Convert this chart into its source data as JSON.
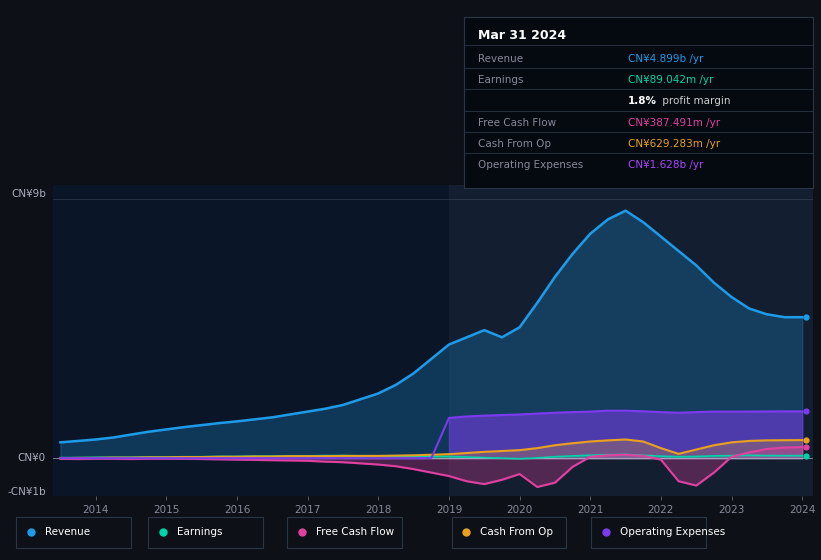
{
  "bg_color": "#0d1117",
  "plot_bg_color": "#0a1628",
  "highlight_bg": "#111d2e",
  "title": "Mar 31 2024",
  "revenue_color": "#1e9be8",
  "earnings_color": "#00d4aa",
  "free_cash_flow_color": "#e040a0",
  "cash_from_op_color": "#e8a020",
  "operating_expenses_color": "#7c3aed",
  "x_years": [
    2013.5,
    2013.75,
    2014.0,
    2014.25,
    2014.5,
    2014.75,
    2015.0,
    2015.25,
    2015.5,
    2015.75,
    2016.0,
    2016.25,
    2016.5,
    2016.75,
    2017.0,
    2017.25,
    2017.5,
    2017.75,
    2018.0,
    2018.25,
    2018.5,
    2018.75,
    2019.0,
    2019.25,
    2019.5,
    2019.75,
    2020.0,
    2020.25,
    2020.5,
    2020.75,
    2021.0,
    2021.25,
    2021.5,
    2021.75,
    2022.0,
    2022.25,
    2022.5,
    2022.75,
    2023.0,
    2023.25,
    2023.5,
    2023.75,
    2024.0
  ],
  "revenue": [
    0.55,
    0.6,
    0.65,
    0.72,
    0.82,
    0.92,
    1.0,
    1.08,
    1.15,
    1.22,
    1.28,
    1.35,
    1.42,
    1.52,
    1.62,
    1.72,
    1.85,
    2.05,
    2.25,
    2.55,
    2.95,
    3.45,
    3.95,
    4.2,
    4.45,
    4.2,
    4.55,
    5.4,
    6.3,
    7.1,
    7.8,
    8.3,
    8.6,
    8.2,
    7.7,
    7.2,
    6.7,
    6.1,
    5.6,
    5.2,
    5.0,
    4.9,
    4.899
  ],
  "earnings": [
    0.02,
    0.02,
    0.03,
    0.03,
    0.03,
    0.04,
    0.04,
    0.05,
    0.05,
    0.06,
    0.06,
    0.07,
    0.07,
    0.08,
    0.08,
    0.09,
    0.09,
    0.08,
    0.08,
    0.07,
    0.07,
    0.06,
    0.06,
    0.04,
    0.02,
    0.0,
    -0.02,
    0.01,
    0.05,
    0.08,
    0.1,
    0.12,
    0.13,
    0.1,
    0.07,
    0.05,
    0.06,
    0.08,
    0.09,
    0.1,
    0.09,
    0.089,
    0.089
  ],
  "free_cash_flow": [
    -0.02,
    -0.03,
    -0.02,
    -0.02,
    -0.03,
    -0.02,
    -0.02,
    -0.02,
    -0.03,
    -0.04,
    -0.05,
    -0.06,
    -0.07,
    -0.08,
    -0.09,
    -0.12,
    -0.14,
    -0.18,
    -0.22,
    -0.28,
    -0.38,
    -0.5,
    -0.62,
    -0.8,
    -0.9,
    -0.75,
    -0.55,
    -1.0,
    -0.85,
    -0.3,
    0.05,
    0.1,
    0.12,
    0.08,
    -0.05,
    -0.8,
    -0.95,
    -0.5,
    0.05,
    0.2,
    0.32,
    0.37,
    0.387
  ],
  "cash_from_op": [
    0.0,
    0.01,
    0.01,
    0.02,
    0.02,
    0.03,
    0.03,
    0.04,
    0.04,
    0.05,
    0.05,
    0.06,
    0.06,
    0.07,
    0.07,
    0.07,
    0.08,
    0.08,
    0.08,
    0.09,
    0.1,
    0.12,
    0.14,
    0.18,
    0.22,
    0.25,
    0.28,
    0.35,
    0.45,
    0.52,
    0.58,
    0.62,
    0.65,
    0.58,
    0.35,
    0.15,
    0.3,
    0.45,
    0.55,
    0.6,
    0.62,
    0.625,
    0.629
  ],
  "operating_expenses": [
    0.0,
    0.0,
    0.0,
    0.0,
    0.0,
    0.0,
    0.0,
    0.0,
    0.0,
    0.0,
    0.0,
    0.0,
    0.0,
    0.0,
    0.0,
    0.0,
    0.0,
    0.0,
    0.0,
    0.0,
    0.0,
    0.0,
    1.4,
    1.45,
    1.48,
    1.5,
    1.52,
    1.55,
    1.58,
    1.6,
    1.62,
    1.65,
    1.65,
    1.63,
    1.6,
    1.58,
    1.6,
    1.62,
    1.62,
    1.62,
    1.625,
    1.627,
    1.628
  ],
  "x_tick_labels": [
    "2014",
    "2015",
    "2016",
    "2017",
    "2018",
    "2019",
    "2020",
    "2021",
    "2022",
    "2023",
    "2024"
  ],
  "x_tick_positions": [
    2014,
    2015,
    2016,
    2017,
    2018,
    2019,
    2020,
    2021,
    2022,
    2023,
    2024
  ],
  "y_label_top": "CN¥9b",
  "y_label_zero": "CN¥0",
  "y_label_bottom": "-CN¥1b",
  "ylim_min": -1.3,
  "ylim_max": 9.5,
  "highlight_start": 2019.0,
  "legend_items": [
    {
      "label": "Revenue",
      "color": "#1e9be8"
    },
    {
      "label": "Earnings",
      "color": "#00d4aa"
    },
    {
      "label": "Free Cash Flow",
      "color": "#e040a0"
    },
    {
      "label": "Cash From Op",
      "color": "#e8a020"
    },
    {
      "label": "Operating Expenses",
      "color": "#7c3aed"
    }
  ],
  "tooltip_title": "Mar 31 2024",
  "tooltip_rows": [
    {
      "label": "Revenue",
      "value": "CN¥4.899b /yr",
      "value_color": "#1e9be8"
    },
    {
      "label": "Earnings",
      "value": "CN¥89.042m /yr",
      "value_color": "#00d4aa"
    },
    {
      "label": "",
      "value": "1.8% profit margin",
      "value_color": "#cccccc",
      "bold_prefix": "1.8%"
    },
    {
      "label": "Free Cash Flow",
      "value": "CN¥387.491m /yr",
      "value_color": "#e040a0"
    },
    {
      "label": "Cash From Op",
      "value": "CN¥629.283m /yr",
      "value_color": "#e8a020"
    },
    {
      "label": "Operating Expenses",
      "value": "CN¥1.628b /yr",
      "value_color": "#aa44ff"
    }
  ]
}
